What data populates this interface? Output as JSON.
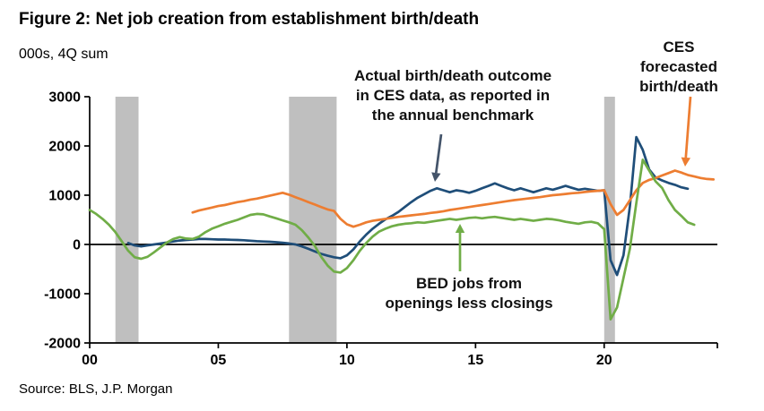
{
  "footer": {
    "source": "Source: BLS, J.P. Morgan"
  },
  "annotations": {
    "actual": {
      "text": "Actual birth/death outcome\nin CES data, as reported in\nthe annual benchmark",
      "color": "#44546A"
    },
    "ces": {
      "text": "CES\nforecasted\nbirth/death",
      "color": "#ED7D31"
    },
    "bed": {
      "text": "BED jobs from\nopenings less closings",
      "color": "#70AD47"
    }
  },
  "chart_data": {
    "type": "line",
    "title": "Figure 2: Net job creation from establishment birth/death",
    "ylabel": "000s, 4Q sum",
    "xlabel": "",
    "ylim": [
      -2000,
      3000
    ],
    "xlim": [
      2000,
      2024.4
    ],
    "grid": false,
    "legend_position": "none (arrow annotations)",
    "y_ticks": [
      3000,
      2000,
      1000,
      0,
      -1000,
      -2000
    ],
    "x_ticks": [
      {
        "value": 2000,
        "label": "00"
      },
      {
        "value": 2005,
        "label": "05"
      },
      {
        "value": 2010,
        "label": "10"
      },
      {
        "value": 2015,
        "label": "15"
      },
      {
        "value": 2020,
        "label": "20"
      },
      {
        "value": 2024.4,
        "label": ""
      }
    ],
    "colors": {
      "recession_band": "#BFBFBF",
      "axis": "#000000"
    },
    "recession_bands": [
      [
        2001.0,
        2001.9
      ],
      [
        2007.75,
        2009.6
      ],
      [
        2020.0,
        2020.42
      ]
    ],
    "series": [
      {
        "id": "actual-benchmark",
        "name": "Actual birth/death outcome in CES data, as reported in the annual benchmark",
        "color": "#1F4E79",
        "x_start": 2001.5,
        "x_step": 0.25,
        "values": [
          30,
          -20,
          -40,
          -20,
          0,
          20,
          40,
          60,
          80,
          90,
          100,
          110,
          110,
          105,
          100,
          100,
          95,
          90,
          85,
          75,
          65,
          60,
          55,
          45,
          35,
          20,
          0,
          -40,
          -90,
          -140,
          -190,
          -230,
          -260,
          -280,
          -220,
          -100,
          60,
          200,
          320,
          420,
          510,
          580,
          660,
          760,
          860,
          950,
          1020,
          1090,
          1140,
          1100,
          1060,
          1100,
          1080,
          1050,
          1090,
          1140,
          1190,
          1240,
          1190,
          1140,
          1100,
          1140,
          1100,
          1060,
          1100,
          1140,
          1110,
          1150,
          1190,
          1150,
          1110,
          1130,
          1110,
          1090,
          1100,
          -320,
          -620,
          -220,
          780,
          2180,
          1920,
          1520,
          1360,
          1300,
          1250,
          1210,
          1160,
          1130
        ]
      },
      {
        "id": "ces-forecast",
        "name": "CES forecasted birth/death",
        "color": "#ED7D31",
        "x_start": 2004.0,
        "x_step": 0.25,
        "values": [
          650,
          690,
          720,
          750,
          780,
          800,
          830,
          860,
          880,
          910,
          930,
          960,
          990,
          1020,
          1050,
          1010,
          960,
          910,
          860,
          810,
          760,
          710,
          680,
          520,
          410,
          360,
          400,
          450,
          480,
          500,
          520,
          540,
          560,
          575,
          590,
          605,
          620,
          640,
          655,
          675,
          700,
          720,
          740,
          760,
          780,
          800,
          820,
          840,
          860,
          880,
          900,
          915,
          930,
          945,
          960,
          980,
          1000,
          1010,
          1025,
          1040,
          1050,
          1065,
          1080,
          1090,
          1100,
          820,
          600,
          700,
          900,
          1100,
          1250,
          1310,
          1350,
          1400,
          1450,
          1500,
          1460,
          1410,
          1380,
          1350,
          1330,
          1320
        ]
      },
      {
        "id": "bed-openings-closings",
        "name": "BED jobs from openings less closings",
        "color": "#70AD47",
        "x_start": 2000.0,
        "x_step": 0.25,
        "values": [
          700,
          620,
          520,
          400,
          250,
          60,
          -130,
          -260,
          -290,
          -250,
          -160,
          -60,
          40,
          110,
          150,
          120,
          110,
          160,
          250,
          320,
          370,
          420,
          460,
          500,
          550,
          600,
          620,
          610,
          570,
          530,
          490,
          450,
          400,
          290,
          140,
          -30,
          -250,
          -430,
          -550,
          -570,
          -480,
          -320,
          -130,
          30,
          160,
          260,
          320,
          370,
          400,
          420,
          430,
          450,
          440,
          460,
          480,
          500,
          520,
          500,
          520,
          540,
          550,
          530,
          550,
          560,
          540,
          520,
          500,
          520,
          500,
          480,
          500,
          520,
          510,
          490,
          460,
          440,
          420,
          450,
          460,
          430,
          310,
          -1520,
          -1280,
          -680,
          -80,
          840,
          1720,
          1500,
          1280,
          1150,
          900,
          700,
          580,
          450,
          400
        ]
      }
    ]
  }
}
